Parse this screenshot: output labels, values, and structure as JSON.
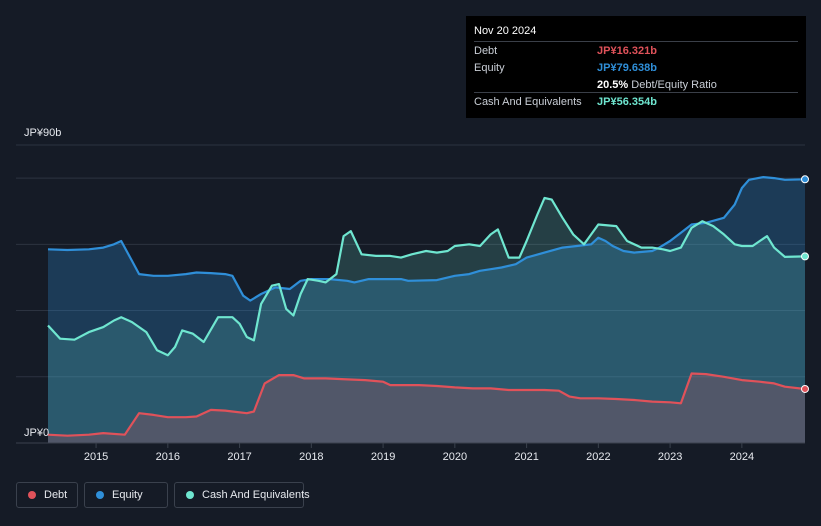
{
  "chart_data": {
    "type": "area",
    "title": "",
    "y_top_label": "JP¥90b",
    "y_bottom_label": "JP¥0",
    "ylim": [
      0,
      90
    ],
    "xlim": [
      2014.33,
      2024.88
    ],
    "x_ticks": [
      "2015",
      "2016",
      "2017",
      "2018",
      "2019",
      "2020",
      "2021",
      "2022",
      "2023",
      "2024"
    ],
    "grid": true,
    "legend_position": "bottom-left",
    "series": [
      {
        "name": "Debt",
        "color": "#e0525a",
        "points": [
          [
            2014.33,
            2.5
          ],
          [
            2014.6,
            2.2
          ],
          [
            2014.9,
            2.5
          ],
          [
            2015.1,
            3
          ],
          [
            2015.4,
            2.5
          ],
          [
            2015.6,
            9
          ],
          [
            2015.8,
            8.5
          ],
          [
            2016.0,
            7.8
          ],
          [
            2016.25,
            7.8
          ],
          [
            2016.4,
            8
          ],
          [
            2016.6,
            10
          ],
          [
            2016.8,
            9.8
          ],
          [
            2016.9,
            9.5
          ],
          [
            2017.1,
            9
          ],
          [
            2017.2,
            9.5
          ],
          [
            2017.35,
            18
          ],
          [
            2017.55,
            20.5
          ],
          [
            2017.75,
            20.5
          ],
          [
            2017.9,
            19.5
          ],
          [
            2018.2,
            19.5
          ],
          [
            2018.5,
            19.2
          ],
          [
            2018.75,
            19
          ],
          [
            2019.0,
            18.5
          ],
          [
            2019.1,
            17.5
          ],
          [
            2019.5,
            17.5
          ],
          [
            2019.75,
            17.2
          ],
          [
            2020.0,
            16.8
          ],
          [
            2020.25,
            16.5
          ],
          [
            2020.5,
            16.5
          ],
          [
            2020.75,
            16
          ],
          [
            2021.0,
            16
          ],
          [
            2021.25,
            16
          ],
          [
            2021.45,
            15.8
          ],
          [
            2021.6,
            14
          ],
          [
            2021.75,
            13.5
          ],
          [
            2022.0,
            13.5
          ],
          [
            2022.25,
            13.3
          ],
          [
            2022.5,
            13
          ],
          [
            2022.75,
            12.5
          ],
          [
            2023.0,
            12.3
          ],
          [
            2023.15,
            12
          ],
          [
            2023.3,
            21
          ],
          [
            2023.5,
            20.8
          ],
          [
            2023.75,
            20
          ],
          [
            2024.0,
            19
          ],
          [
            2024.25,
            18.5
          ],
          [
            2024.45,
            18
          ],
          [
            2024.6,
            17
          ],
          [
            2024.88,
            16.321
          ]
        ]
      },
      {
        "name": "Equity",
        "color": "#2f8fd9",
        "points": [
          [
            2014.33,
            58.5
          ],
          [
            2014.6,
            58.3
          ],
          [
            2014.9,
            58.5
          ],
          [
            2015.1,
            59
          ],
          [
            2015.25,
            60
          ],
          [
            2015.35,
            61
          ],
          [
            2015.5,
            55
          ],
          [
            2015.6,
            51
          ],
          [
            2015.8,
            50.5
          ],
          [
            2016.0,
            50.5
          ],
          [
            2016.25,
            51
          ],
          [
            2016.4,
            51.5
          ],
          [
            2016.6,
            51.3
          ],
          [
            2016.8,
            51
          ],
          [
            2016.9,
            50.5
          ],
          [
            2017.05,
            44.5
          ],
          [
            2017.15,
            43
          ],
          [
            2017.3,
            45
          ],
          [
            2017.5,
            47
          ],
          [
            2017.7,
            46.5
          ],
          [
            2017.85,
            49
          ],
          [
            2018.0,
            49.5
          ],
          [
            2018.25,
            49.5
          ],
          [
            2018.5,
            49
          ],
          [
            2018.6,
            48.5
          ],
          [
            2018.8,
            49.5
          ],
          [
            2019.0,
            49.5
          ],
          [
            2019.25,
            49.5
          ],
          [
            2019.35,
            49
          ],
          [
            2019.75,
            49.2
          ],
          [
            2020.0,
            50.5
          ],
          [
            2020.2,
            51
          ],
          [
            2020.35,
            52
          ],
          [
            2020.5,
            52.5
          ],
          [
            2020.65,
            53
          ],
          [
            2020.85,
            54
          ],
          [
            2021.0,
            56
          ],
          [
            2021.25,
            57.5
          ],
          [
            2021.5,
            59
          ],
          [
            2021.7,
            59.5
          ],
          [
            2021.9,
            60
          ],
          [
            2022.0,
            62
          ],
          [
            2022.1,
            61
          ],
          [
            2022.2,
            59.5
          ],
          [
            2022.35,
            58
          ],
          [
            2022.5,
            57.5
          ],
          [
            2022.75,
            58
          ],
          [
            2022.85,
            59
          ],
          [
            2023.0,
            61
          ],
          [
            2023.15,
            63.5
          ],
          [
            2023.3,
            66
          ],
          [
            2023.5,
            66.5
          ],
          [
            2023.75,
            68
          ],
          [
            2023.9,
            72
          ],
          [
            2024.0,
            77
          ],
          [
            2024.1,
            79.5
          ],
          [
            2024.3,
            80.3
          ],
          [
            2024.45,
            80
          ],
          [
            2024.6,
            79.5
          ],
          [
            2024.88,
            79.638
          ]
        ]
      },
      {
        "name": "Cash And Equivalents",
        "color": "#6fe6d0",
        "points": [
          [
            2014.33,
            35.5
          ],
          [
            2014.5,
            31.5
          ],
          [
            2014.7,
            31.2
          ],
          [
            2014.9,
            33.5
          ],
          [
            2015.1,
            35
          ],
          [
            2015.25,
            37
          ],
          [
            2015.35,
            38
          ],
          [
            2015.5,
            36.5
          ],
          [
            2015.7,
            33.5
          ],
          [
            2015.85,
            28
          ],
          [
            2016.0,
            26.5
          ],
          [
            2016.1,
            29
          ],
          [
            2016.2,
            34
          ],
          [
            2016.35,
            33
          ],
          [
            2016.5,
            30.5
          ],
          [
            2016.7,
            38
          ],
          [
            2016.9,
            38
          ],
          [
            2017.0,
            36
          ],
          [
            2017.1,
            32
          ],
          [
            2017.2,
            31
          ],
          [
            2017.3,
            42
          ],
          [
            2017.45,
            47.5
          ],
          [
            2017.55,
            48
          ],
          [
            2017.65,
            40.5
          ],
          [
            2017.75,
            38.5
          ],
          [
            2017.85,
            45
          ],
          [
            2017.95,
            49.5
          ],
          [
            2018.1,
            49
          ],
          [
            2018.2,
            48.5
          ],
          [
            2018.35,
            51
          ],
          [
            2018.45,
            62.5
          ],
          [
            2018.55,
            64
          ],
          [
            2018.7,
            57
          ],
          [
            2018.9,
            56.5
          ],
          [
            2019.1,
            56.5
          ],
          [
            2019.25,
            56
          ],
          [
            2019.4,
            57
          ],
          [
            2019.6,
            58
          ],
          [
            2019.75,
            57.5
          ],
          [
            2019.9,
            58
          ],
          [
            2020.0,
            59.5
          ],
          [
            2020.2,
            60
          ],
          [
            2020.35,
            59.5
          ],
          [
            2020.5,
            63
          ],
          [
            2020.6,
            64.5
          ],
          [
            2020.75,
            56
          ],
          [
            2020.9,
            56
          ],
          [
            2021.0,
            61
          ],
          [
            2021.15,
            69
          ],
          [
            2021.25,
            74
          ],
          [
            2021.35,
            73.5
          ],
          [
            2021.5,
            68
          ],
          [
            2021.65,
            63
          ],
          [
            2021.8,
            60
          ],
          [
            2021.9,
            63
          ],
          [
            2022.0,
            66
          ],
          [
            2022.25,
            65.5
          ],
          [
            2022.4,
            61
          ],
          [
            2022.6,
            59
          ],
          [
            2022.75,
            59
          ],
          [
            2022.9,
            58.5
          ],
          [
            2023.0,
            58
          ],
          [
            2023.15,
            59
          ],
          [
            2023.3,
            65
          ],
          [
            2023.45,
            67
          ],
          [
            2023.6,
            65.5
          ],
          [
            2023.75,
            63
          ],
          [
            2023.9,
            60
          ],
          [
            2024.0,
            59.5
          ],
          [
            2024.15,
            59.5
          ],
          [
            2024.25,
            61
          ],
          [
            2024.35,
            62.5
          ],
          [
            2024.45,
            59
          ],
          [
            2024.6,
            56.2
          ],
          [
            2024.88,
            56.354
          ]
        ]
      }
    ]
  },
  "tooltip": {
    "date": "Nov 20 2024",
    "debt_label": "Debt",
    "debt_value": "JP¥16.321b",
    "equity_label": "Equity",
    "equity_value": "JP¥79.638b",
    "ratio_value": "20.5%",
    "ratio_label": "Debt/Equity Ratio",
    "cash_label": "Cash And Equivalents",
    "cash_value": "JP¥56.354b"
  },
  "legend": {
    "debt": "Debt",
    "equity": "Equity",
    "cash": "Cash And Equivalents"
  }
}
